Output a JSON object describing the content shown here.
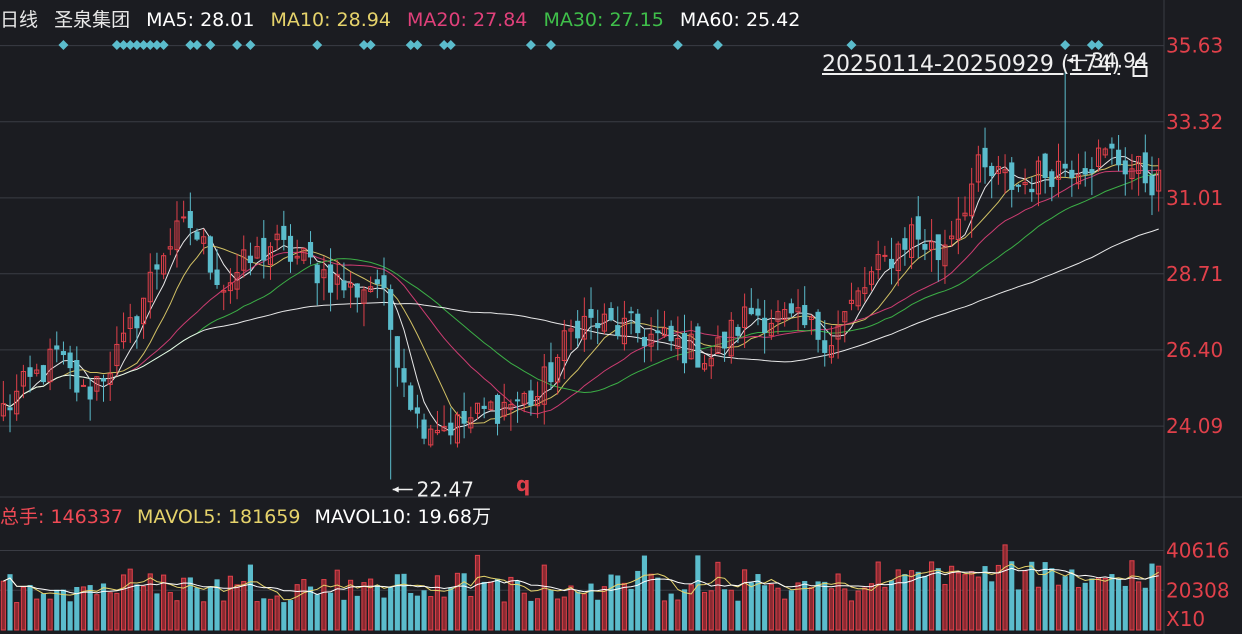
{
  "header": {
    "period": "日线",
    "stock_name": "圣泉集团",
    "ma": [
      {
        "label": "MA5:",
        "value": "28.01",
        "color": "#ffffff"
      },
      {
        "label": "MA10:",
        "value": "28.94",
        "color": "#e6d36b"
      },
      {
        "label": "MA20:",
        "value": "27.84",
        "color": "#e0407a"
      },
      {
        "label": "MA30:",
        "value": "27.15",
        "color": "#3fbf4a"
      },
      {
        "label": "MA60:",
        "value": "25.42",
        "color": "#ffffff"
      }
    ]
  },
  "range_label": "20250114-20250929 (174)",
  "volume_header": {
    "total": {
      "label": "总手:",
      "value": "146337",
      "color": "#f04a55"
    },
    "mavol5": {
      "label": "MAVOL5:",
      "value": "181659",
      "color": "#e6d36b"
    },
    "mavol10": {
      "label": "MAVOL10:",
      "value": "19.68万",
      "color": "#ffffff"
    }
  },
  "marker_q": "q",
  "colors": {
    "up": "#e0404a",
    "down": "#5bbccc",
    "grid": "#3a3c44",
    "axis_text": "#e0404a",
    "background": "#1b1c21"
  },
  "chart_data": [
    {
      "type": "candlestick",
      "title": "",
      "y_ticks": [
        "35.63",
        "33.32",
        "31.01",
        "28.71",
        "26.40",
        "24.09"
      ],
      "ylim": [
        22.0,
        35.8
      ],
      "annotations": [
        {
          "text": "34.94",
          "value": 34.94,
          "kind": "high"
        },
        {
          "text": "22.47",
          "value": 22.47,
          "kind": "low"
        }
      ],
      "price_path_keyframes": [
        [
          0,
          24.6
        ],
        [
          8,
          26.2
        ],
        [
          12,
          25.0
        ],
        [
          18,
          26.5
        ],
        [
          24,
          29.5
        ],
        [
          28,
          30.2
        ],
        [
          33,
          28.4
        ],
        [
          40,
          29.6
        ],
        [
          46,
          29.0
        ],
        [
          52,
          28.2
        ],
        [
          56,
          28.5
        ],
        [
          62,
          24.3
        ],
        [
          68,
          24.1
        ],
        [
          74,
          24.7
        ],
        [
          80,
          25.0
        ],
        [
          86,
          27.3
        ],
        [
          94,
          27.0
        ],
        [
          100,
          26.6
        ],
        [
          106,
          26.2
        ],
        [
          112,
          27.6
        ],
        [
          118,
          27.2
        ],
        [
          124,
          26.8
        ],
        [
          130,
          28.6
        ],
        [
          136,
          30.0
        ],
        [
          140,
          29.3
        ],
        [
          146,
          31.8
        ],
        [
          152,
          31.4
        ],
        [
          158,
          32.0
        ],
        [
          166,
          32.3
        ],
        [
          174,
          31.3
        ]
      ],
      "signal_markers": [
        "diamond-icon"
      ]
    },
    {
      "type": "bar",
      "title": "",
      "y_ticks": [
        "40616",
        "20308"
      ],
      "y_unit": "X10",
      "ylim": [
        0,
        46000
      ]
    }
  ]
}
